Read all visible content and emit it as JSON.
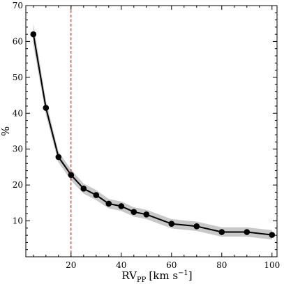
{
  "chart_data": {
    "type": "line",
    "xlabel": "RV",
    "xlabel_sub": "PP",
    "xlabel_units": "[km s",
    "xlabel_units_sup": "−1",
    "xlabel_units_close": "]",
    "ylabel": "%",
    "xlim": [
      2,
      102
    ],
    "ylim": [
      0,
      70
    ],
    "xticks": [
      20,
      40,
      60,
      80,
      100
    ],
    "yticks": [
      0,
      10,
      20,
      30,
      40,
      50,
      60,
      70
    ],
    "grid": false,
    "vline": {
      "x": 20,
      "color": "#cc0000",
      "style": "dashed"
    },
    "series": [
      {
        "color": "#000000",
        "band_color": "#c8c8c8",
        "x": [
          5,
          10,
          15,
          20,
          25,
          30,
          35,
          40,
          45,
          50,
          60,
          70,
          80,
          90,
          100
        ],
        "y": [
          62,
          41.5,
          27.8,
          22.8,
          19.0,
          17.2,
          14.8,
          14.1,
          12.5,
          11.8,
          9.2,
          8.5,
          6.9,
          6.9,
          6.1
        ],
        "lower": [
          59,
          39.5,
          26.3,
          21.3,
          17.6,
          15.8,
          13.5,
          12.8,
          11.2,
          10.5,
          7.9,
          7.2,
          5.6,
          5.6,
          4.8
        ],
        "upper": [
          65,
          43.5,
          29.3,
          24.3,
          20.4,
          18.6,
          16.1,
          15.4,
          13.8,
          13.1,
          10.5,
          9.8,
          8.2,
          8.2,
          7.4
        ]
      }
    ]
  }
}
